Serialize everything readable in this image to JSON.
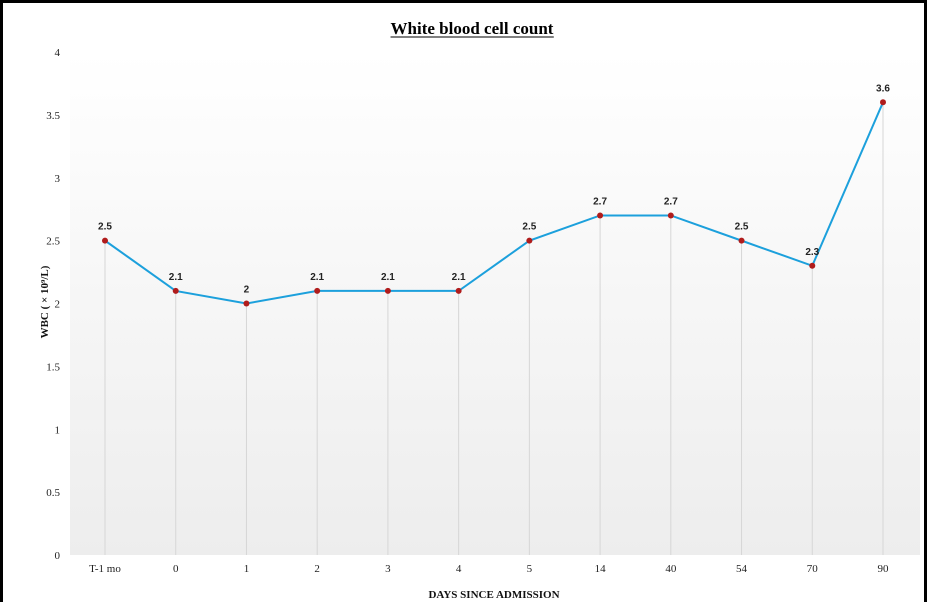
{
  "chart_data": {
    "type": "line",
    "title": "White blood cell count",
    "xlabel": "DAYS SINCE ADMISSION",
    "ylabel": "WBC ( × 10⁹/L)",
    "categories": [
      "T-1 mo",
      "0",
      "1",
      "2",
      "3",
      "4",
      "5",
      "14",
      "40",
      "54",
      "70",
      "90"
    ],
    "series": [
      {
        "values": [
          2.5,
          2.1,
          2.0,
          2.1,
          2.1,
          2.1,
          2.5,
          2.7,
          2.7,
          2.5,
          2.3,
          3.6
        ]
      }
    ],
    "data_labels": [
      "2.5",
      "2.1",
      "2",
      "2.1",
      "2.1",
      "2.1",
      "2.5",
      "2.7",
      "2.7",
      "2.5",
      "2.3",
      "3.6"
    ],
    "yticks": [
      "0",
      "0.5",
      "1",
      "1.5",
      "2",
      "2.5",
      "3",
      "3.5",
      "4"
    ],
    "ylim": [
      0,
      4
    ],
    "grid": "vertical drop lines",
    "line_color": "#1ca0dc",
    "marker_color": "#b01c1c"
  }
}
